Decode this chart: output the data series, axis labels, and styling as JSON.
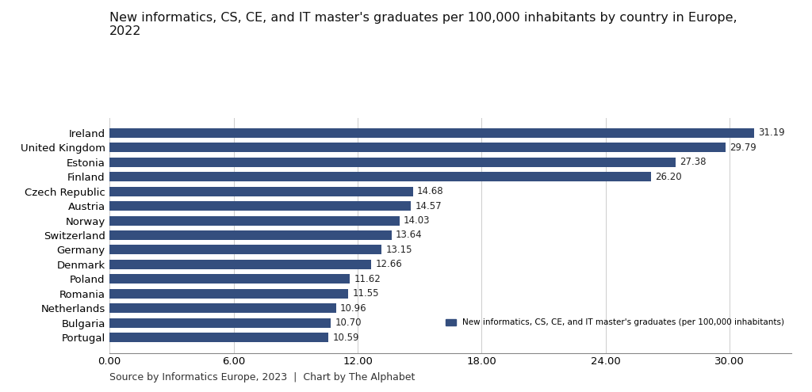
{
  "title_line1": "New informatics, CS, CE, and IT master's graduates per 100,000 inhabitants by country in Europe,",
  "title_line2": "2022",
  "countries": [
    "Portugal",
    "Bulgaria",
    "Netherlands",
    "Romania",
    "Poland",
    "Denmark",
    "Germany",
    "Switzerland",
    "Norway",
    "Austria",
    "Czech Republic",
    "Finland",
    "Estonia",
    "United Kingdom",
    "Ireland"
  ],
  "values": [
    10.59,
    10.7,
    10.96,
    11.55,
    11.62,
    12.66,
    13.15,
    13.64,
    14.03,
    14.57,
    14.68,
    26.2,
    27.38,
    29.79,
    31.19
  ],
  "bar_color": "#344e7e",
  "label_color": "#222222",
  "background_color": "#ffffff",
  "xlabel_ticks": [
    "0.00",
    "6.00",
    "12.00",
    "18.00",
    "24.00",
    "30.00"
  ],
  "xlabel_vals": [
    0,
    6,
    12,
    18,
    24,
    30
  ],
  "xlim": [
    0,
    33.0
  ],
  "footer": "Source by Informatics Europe, 2023  |  Chart by The Alphabet",
  "legend_label": "New informatics, CS, CE, and IT master's graduates (per 100,000 inhabitants)",
  "title_fontsize": 11.5,
  "tick_fontsize": 9.5,
  "label_fontsize": 8.5,
  "footer_fontsize": 9,
  "bar_height": 0.65
}
